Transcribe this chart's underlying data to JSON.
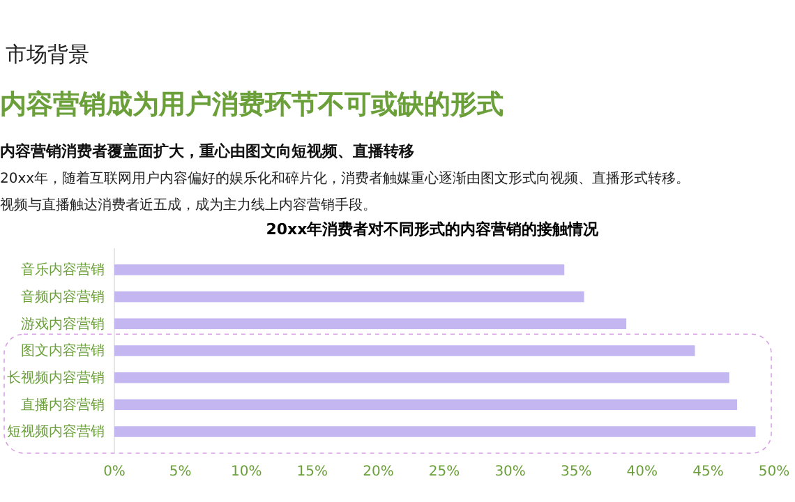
{
  "chart_data": {
    "type": "bar",
    "orientation": "horizontal",
    "title": "20xx年消费者对不同形式的内容营销的接触情况",
    "annotations": [
      "市场背景",
      "内容营销成为用户消费环节不可或缺的形式",
      "内容营销消费者覆盖面扩大，重心由图文向短视频、直播转移",
      "20xx年，随着互联网用户内容偏好的娱乐化和碎片化，消费者触媒重心逐渐由图文形式向视频、直播形式转移。",
      "视频与直播触达消费者近五成，成为主力线上内容营销手段。"
    ],
    "categories": [
      "音乐内容营销",
      "音频内容营销",
      "游戏内容营销",
      "图文内容营销",
      "长视频内容营销",
      "直播内容营销",
      "短视频内容营销"
    ],
    "series": [
      {
        "color": "#c4b6f0",
        "values": [
          34.1,
          35.6,
          38.8,
          44.0,
          46.6,
          47.2,
          48.6
        ]
      }
    ],
    "xlim": [
      0,
      50
    ],
    "xticks": [
      {
        "value": 0,
        "label": "0%"
      },
      {
        "value": 5,
        "label": "5%"
      },
      {
        "value": 10,
        "label": "10%"
      },
      {
        "value": 15,
        "label": "15%"
      },
      {
        "value": 20,
        "label": "20%"
      },
      {
        "value": 25,
        "label": "25%"
      },
      {
        "value": 30,
        "label": "30%"
      },
      {
        "value": 35,
        "label": "35%"
      },
      {
        "value": 40,
        "label": "40%"
      },
      {
        "value": 45,
        "label": "45%"
      },
      {
        "value": 50,
        "label": "50%"
      }
    ],
    "grid": false
  }
}
